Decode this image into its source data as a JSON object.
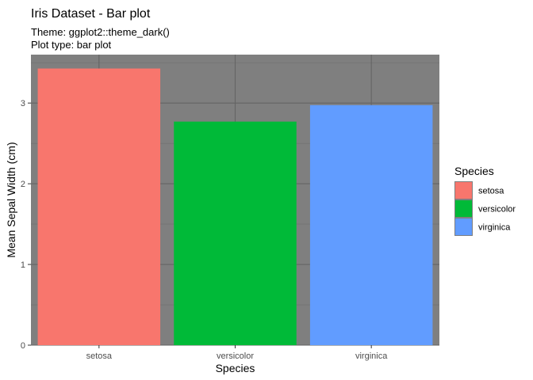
{
  "chart_data": {
    "type": "bar",
    "title": "Iris Dataset - Bar plot",
    "subtitle": [
      "Theme: ggplot2::theme_dark()",
      "Plot type: bar plot"
    ],
    "xlabel": "Species",
    "ylabel": "Mean Sepal Width (cm)",
    "categories": [
      "setosa",
      "versicolor",
      "virginica"
    ],
    "values": [
      3.428,
      2.77,
      2.974
    ],
    "colors": [
      "#F8766D",
      "#00BA38",
      "#619CFF"
    ],
    "ylim": [
      0,
      3.6
    ],
    "yticks": [
      0,
      1,
      2,
      3
    ],
    "panel_background": "#7f7f7f",
    "grid": true,
    "legend": {
      "title": "Species",
      "position": "right",
      "entries": [
        "setosa",
        "versicolor",
        "virginica"
      ]
    }
  }
}
